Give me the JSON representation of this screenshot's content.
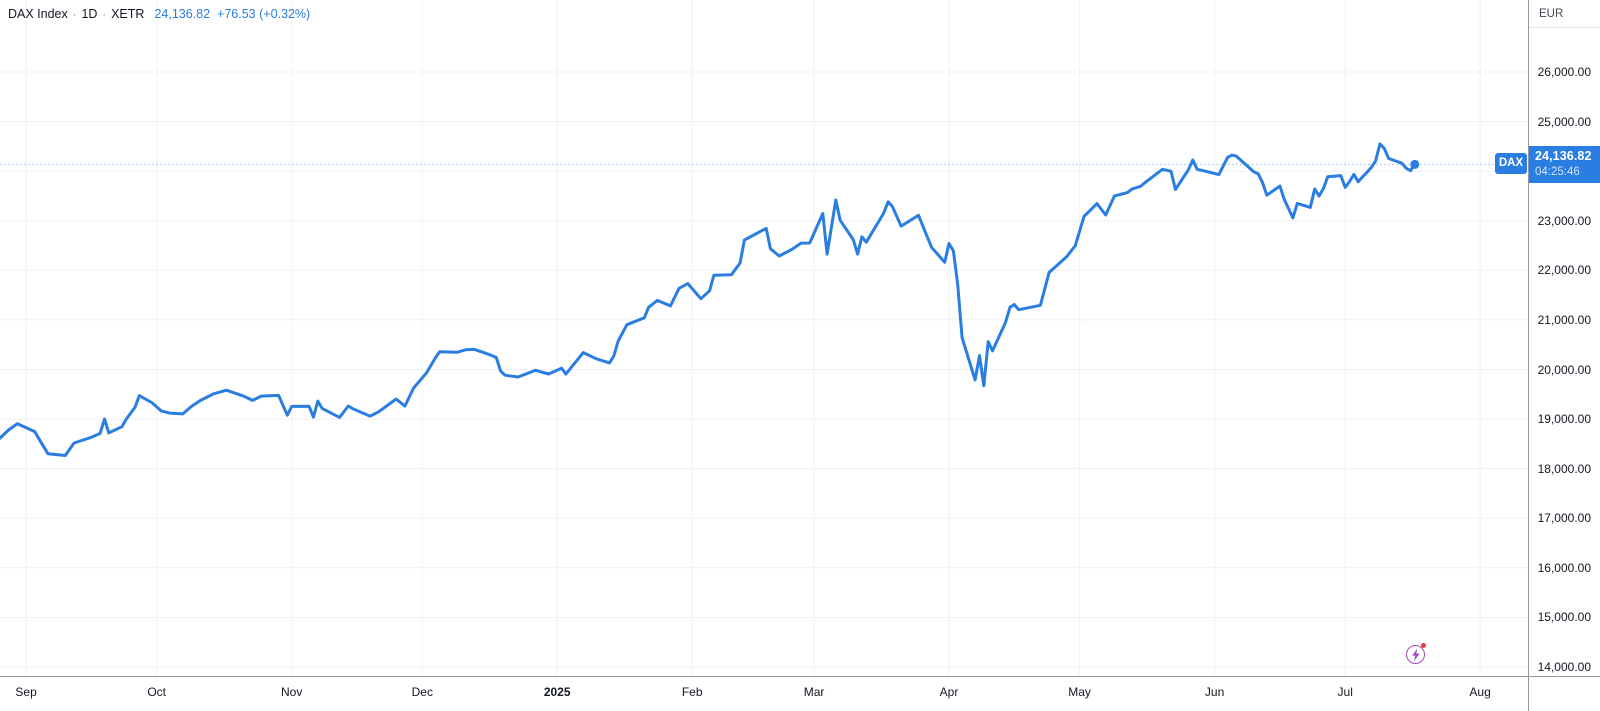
{
  "legend": {
    "symbol": "DAX Index",
    "separator": "·",
    "interval": "1D",
    "exchange": "XETR",
    "last_price": "24,136.82",
    "change": "+76.53 (+0.32%)"
  },
  "price_label": {
    "symbol": "DAX",
    "value": "24,136.82",
    "countdown": "04:25:46"
  },
  "price_scale": {
    "currency": "EUR"
  },
  "colors": {
    "accent": "#2A7DE1",
    "text": "#131722",
    "grid": "#EEF1F7",
    "axis_border": "#9598A1",
    "lightning": "#AB47BC",
    "alert_dot": "#F23645"
  },
  "chart_data": {
    "type": "line",
    "title": "DAX Index",
    "interval": "1D",
    "exchange": "XETR",
    "currency": "EUR",
    "legend_position": "top-left",
    "grid": true,
    "last_value": 24136.82,
    "x_axis": {
      "min_date": "2024-08-26",
      "max_date": "2025-08-12"
    },
    "y_axis": {
      "min": 13818,
      "max": 27452
    },
    "y_ticks": [
      {
        "value": 26000,
        "label": "26,000.00"
      },
      {
        "value": 25000,
        "label": "25,000.00"
      },
      {
        "value": 24000,
        "label": "24,000.00"
      },
      {
        "value": 23000,
        "label": "23,000.00"
      },
      {
        "value": 22000,
        "label": "22,000.00"
      },
      {
        "value": 21000,
        "label": "21,000.00"
      },
      {
        "value": 20000,
        "label": "20,000.00"
      },
      {
        "value": 19000,
        "label": "19,000.00"
      },
      {
        "value": 18000,
        "label": "18,000.00"
      },
      {
        "value": 17000,
        "label": "17,000.00"
      },
      {
        "value": 16000,
        "label": "16,000.00"
      },
      {
        "value": 15000,
        "label": "15,000.00"
      },
      {
        "value": 14000,
        "label": "14,000.00"
      }
    ],
    "x_ticks": [
      {
        "label": "Sep",
        "date": "2024-09-01",
        "bold": false
      },
      {
        "label": "Oct",
        "date": "2024-10-01",
        "bold": false
      },
      {
        "label": "Nov",
        "date": "2024-11-01",
        "bold": false
      },
      {
        "label": "Dec",
        "date": "2024-12-01",
        "bold": false
      },
      {
        "label": "2025",
        "date": "2025-01-01",
        "bold": true
      },
      {
        "label": "Feb",
        "date": "2025-02-01",
        "bold": false
      },
      {
        "label": "Mar",
        "date": "2025-03-01",
        "bold": false
      },
      {
        "label": "Apr",
        "date": "2025-04-01",
        "bold": false
      },
      {
        "label": "May",
        "date": "2025-05-01",
        "bold": false
      },
      {
        "label": "Jun",
        "date": "2025-06-01",
        "bold": false
      },
      {
        "label": "Jul",
        "date": "2025-07-01",
        "bold": false
      },
      {
        "label": "Aug",
        "date": "2025-08-01",
        "bold": false
      }
    ],
    "series": [
      {
        "name": "DAX",
        "color": "#2A7DE1",
        "points": [
          [
            "2024-08-26",
            18617
          ],
          [
            "2024-08-28",
            18782
          ],
          [
            "2024-08-30",
            18907
          ],
          [
            "2024-09-03",
            18747
          ],
          [
            "2024-09-04",
            18592
          ],
          [
            "2024-09-06",
            18302
          ],
          [
            "2024-09-10",
            18266
          ],
          [
            "2024-09-12",
            18518
          ],
          [
            "2024-09-16",
            18633
          ],
          [
            "2024-09-18",
            18711
          ],
          [
            "2024-09-19",
            19002
          ],
          [
            "2024-09-20",
            18720
          ],
          [
            "2024-09-23",
            18846
          ],
          [
            "2024-09-24",
            18996
          ],
          [
            "2024-09-26",
            19238
          ],
          [
            "2024-09-27",
            19474
          ],
          [
            "2024-09-30",
            19325
          ],
          [
            "2024-10-02",
            19165
          ],
          [
            "2024-10-04",
            19120
          ],
          [
            "2024-10-07",
            19104
          ],
          [
            "2024-10-09",
            19255
          ],
          [
            "2024-10-11",
            19374
          ],
          [
            "2024-10-14",
            19508
          ],
          [
            "2024-10-17",
            19583
          ],
          [
            "2024-10-21",
            19461
          ],
          [
            "2024-10-23",
            19377
          ],
          [
            "2024-10-25",
            19464
          ],
          [
            "2024-10-29",
            19478
          ],
          [
            "2024-10-31",
            19077
          ],
          [
            "2024-11-01",
            19255
          ],
          [
            "2024-11-05",
            19257
          ],
          [
            "2024-11-06",
            19039
          ],
          [
            "2024-11-07",
            19363
          ],
          [
            "2024-11-08",
            19216
          ],
          [
            "2024-11-12",
            19034
          ],
          [
            "2024-11-14",
            19263
          ],
          [
            "2024-11-15",
            19211
          ],
          [
            "2024-11-19",
            19060
          ],
          [
            "2024-11-21",
            19146
          ],
          [
            "2024-11-25",
            19405
          ],
          [
            "2024-11-27",
            19262
          ],
          [
            "2024-11-29",
            19626
          ],
          [
            "2024-12-02",
            19934
          ],
          [
            "2024-12-04",
            20232
          ],
          [
            "2024-12-05",
            20359
          ],
          [
            "2024-12-09",
            20346
          ],
          [
            "2024-12-11",
            20399
          ],
          [
            "2024-12-13",
            20406
          ],
          [
            "2024-12-16",
            20314
          ],
          [
            "2024-12-18",
            20242
          ],
          [
            "2024-12-19",
            19970
          ],
          [
            "2024-12-20",
            19885
          ],
          [
            "2024-12-23",
            19849
          ],
          [
            "2024-12-27",
            19984
          ],
          [
            "2024-12-30",
            19909
          ],
          [
            "2025-01-02",
            20025
          ],
          [
            "2025-01-03",
            19906
          ],
          [
            "2025-01-07",
            20340
          ],
          [
            "2025-01-10",
            20215
          ],
          [
            "2025-01-13",
            20133
          ],
          [
            "2025-01-14",
            20271
          ],
          [
            "2025-01-15",
            20575
          ],
          [
            "2025-01-17",
            20903
          ],
          [
            "2025-01-21",
            21042
          ],
          [
            "2025-01-22",
            21254
          ],
          [
            "2025-01-24",
            21394
          ],
          [
            "2025-01-27",
            21282
          ],
          [
            "2025-01-29",
            21638
          ],
          [
            "2025-01-31",
            21732
          ],
          [
            "2025-02-03",
            21428
          ],
          [
            "2025-02-05",
            21586
          ],
          [
            "2025-02-06",
            21902
          ],
          [
            "2025-02-10",
            21911
          ],
          [
            "2025-02-12",
            22148
          ],
          [
            "2025-02-13",
            22612
          ],
          [
            "2025-02-17",
            22799
          ],
          [
            "2025-02-18",
            22845
          ],
          [
            "2025-02-19",
            22434
          ],
          [
            "2025-02-21",
            22288
          ],
          [
            "2025-02-24",
            22425
          ],
          [
            "2025-02-26",
            22550
          ],
          [
            "2025-02-28",
            22551
          ],
          [
            "2025-03-03",
            23147
          ],
          [
            "2025-03-04",
            22327
          ],
          [
            "2025-03-06",
            23419
          ],
          [
            "2025-03-07",
            23009
          ],
          [
            "2025-03-10",
            22621
          ],
          [
            "2025-03-11",
            22328
          ],
          [
            "2025-03-12",
            22676
          ],
          [
            "2025-03-13",
            22567
          ],
          [
            "2025-03-17",
            23155
          ],
          [
            "2025-03-18",
            23381
          ],
          [
            "2025-03-19",
            23288
          ],
          [
            "2025-03-21",
            22892
          ],
          [
            "2025-03-25",
            23110
          ],
          [
            "2025-03-27",
            22679
          ],
          [
            "2025-03-28",
            22462
          ],
          [
            "2025-03-31",
            22163
          ],
          [
            "2025-04-01",
            22540
          ],
          [
            "2025-04-02",
            22390
          ],
          [
            "2025-04-03",
            21717
          ],
          [
            "2025-04-04",
            20642
          ],
          [
            "2025-04-07",
            19790
          ],
          [
            "2025-04-08",
            20280
          ],
          [
            "2025-04-09",
            19671
          ],
          [
            "2025-04-10",
            20563
          ],
          [
            "2025-04-11",
            20374
          ],
          [
            "2025-04-14",
            20954
          ],
          [
            "2025-04-15",
            21254
          ],
          [
            "2025-04-16",
            21311
          ],
          [
            "2025-04-17",
            21205
          ],
          [
            "2025-04-22",
            21294
          ],
          [
            "2025-04-24",
            21957
          ],
          [
            "2025-04-28",
            22272
          ],
          [
            "2025-04-30",
            22497
          ],
          [
            "2025-05-02",
            23087
          ],
          [
            "2025-05-05",
            23345
          ],
          [
            "2025-05-07",
            23116
          ],
          [
            "2025-05-09",
            23499
          ],
          [
            "2025-05-12",
            23567
          ],
          [
            "2025-05-13",
            23639
          ],
          [
            "2025-05-15",
            23695
          ],
          [
            "2025-05-16",
            23767
          ],
          [
            "2025-05-20",
            24036
          ],
          [
            "2025-05-22",
            23999
          ],
          [
            "2025-05-23",
            23630
          ],
          [
            "2025-05-26",
            24027
          ],
          [
            "2025-05-27",
            24226
          ],
          [
            "2025-05-28",
            24038
          ],
          [
            "2025-05-30",
            23997
          ],
          [
            "2025-06-02",
            23931
          ],
          [
            "2025-06-04",
            24277
          ],
          [
            "2025-06-05",
            24324
          ],
          [
            "2025-06-06",
            24304
          ],
          [
            "2025-06-10",
            23988
          ],
          [
            "2025-06-11",
            23949
          ],
          [
            "2025-06-12",
            23771
          ],
          [
            "2025-06-13",
            23516
          ],
          [
            "2025-06-16",
            23699
          ],
          [
            "2025-06-17",
            23434
          ],
          [
            "2025-06-19",
            23057
          ],
          [
            "2025-06-20",
            23350
          ],
          [
            "2025-06-23",
            23269
          ],
          [
            "2025-06-24",
            23641
          ],
          [
            "2025-06-25",
            23498
          ],
          [
            "2025-06-26",
            23649
          ],
          [
            "2025-06-27",
            23886
          ],
          [
            "2025-06-30",
            23910
          ],
          [
            "2025-07-01",
            23673
          ],
          [
            "2025-07-02",
            23790
          ],
          [
            "2025-07-03",
            23934
          ],
          [
            "2025-07-04",
            23787
          ],
          [
            "2025-07-07",
            24074
          ],
          [
            "2025-07-08",
            24206
          ],
          [
            "2025-07-09",
            24549
          ],
          [
            "2025-07-10",
            24457
          ],
          [
            "2025-07-11",
            24255
          ],
          [
            "2025-07-14",
            24161
          ],
          [
            "2025-07-15",
            24060
          ],
          [
            "2025-07-16",
            24009
          ],
          [
            "2025-07-17",
            24136.82
          ]
        ]
      }
    ]
  }
}
